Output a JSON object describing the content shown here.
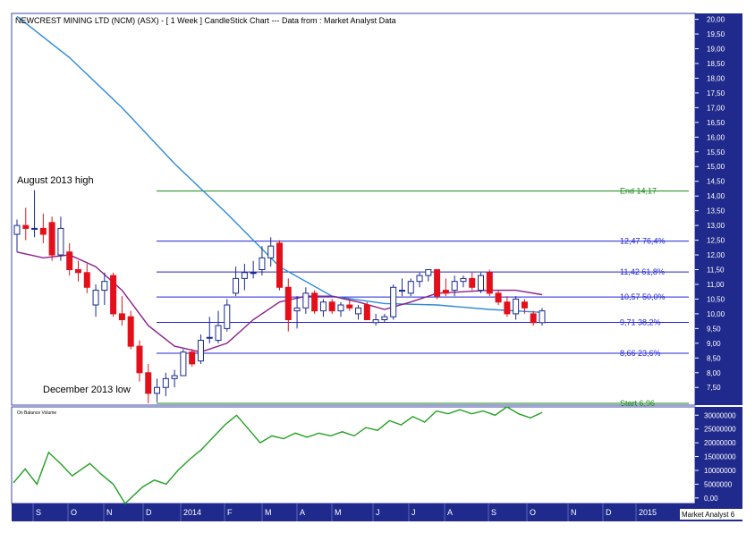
{
  "title": "NEWCREST MINING LTD (NCM) (ASX) -  [ 1 Week ] CandleStick Chart --- Data from : Market Analyst Data",
  "watermark": "Market Analyst 6",
  "annotations": {
    "high": "August 2013 high",
    "low": "December 2013 low"
  },
  "indicator_label": "On Balance Volume",
  "colors": {
    "axis_bg": "#1f2a8c",
    "up": "#ffffff",
    "down": "#e3101b",
    "fib_line": "#2323d8",
    "fib_end": "#1a8a1a",
    "ma_long": "#2e8ad8",
    "ma_short": "#8b1f8b",
    "obv": "#22a022"
  },
  "chart_data": [
    {
      "type": "candlestick",
      "x_axis_labels": [
        "S",
        "O",
        "N",
        "D",
        "2014",
        "F",
        "M",
        "A",
        "M",
        "J",
        "J",
        "A",
        "S",
        "O",
        "N",
        "D",
        "2015"
      ],
      "y_ticks": [
        "20,00",
        "19,50",
        "19,00",
        "18,50",
        "18,00",
        "17,50",
        "17,00",
        "16,50",
        "16,00",
        "15,50",
        "15,00",
        "14,50",
        "14,00",
        "13,50",
        "13,00",
        "12,50",
        "12,00",
        "11,50",
        "11,00",
        "10,50",
        "10,00",
        "9,50",
        "9,00",
        "8,50",
        "8,00",
        "7,50"
      ],
      "ylim": [
        6.9,
        20.2
      ],
      "fib_levels": [
        {
          "label": "End 14,17",
          "value": 14.17
        },
        {
          "label": "12,47 76,4%",
          "value": 12.47
        },
        {
          "label": "11,42 61,8%",
          "value": 11.42
        },
        {
          "label": "10,57 50,0%",
          "value": 10.57
        },
        {
          "label": "9,71 38,2%",
          "value": 9.71
        },
        {
          "label": "8,66 23,6%",
          "value": 8.66
        },
        {
          "label": "Start 6,96",
          "value": 6.96
        }
      ],
      "candles": [
        {
          "o": 12.7,
          "h": 13.2,
          "l": 12.1,
          "c": 13.0
        },
        {
          "o": 13.0,
          "h": 13.6,
          "l": 12.5,
          "c": 12.9
        },
        {
          "o": 12.9,
          "h": 14.2,
          "l": 12.6,
          "c": 12.9
        },
        {
          "o": 12.9,
          "h": 13.4,
          "l": 12.4,
          "c": 12.7
        },
        {
          "o": 13.1,
          "h": 13.3,
          "l": 11.8,
          "c": 12.0
        },
        {
          "o": 12.0,
          "h": 13.3,
          "l": 11.8,
          "c": 12.9
        },
        {
          "o": 12.1,
          "h": 12.4,
          "l": 11.3,
          "c": 11.5
        },
        {
          "o": 11.5,
          "h": 11.8,
          "l": 11.1,
          "c": 11.4
        },
        {
          "o": 11.4,
          "h": 11.7,
          "l": 10.7,
          "c": 10.9
        },
        {
          "o": 10.3,
          "h": 11.0,
          "l": 9.9,
          "c": 10.8
        },
        {
          "o": 10.8,
          "h": 11.4,
          "l": 10.3,
          "c": 11.1
        },
        {
          "o": 11.3,
          "h": 11.4,
          "l": 9.9,
          "c": 10.0
        },
        {
          "o": 10.0,
          "h": 10.6,
          "l": 9.6,
          "c": 9.8
        },
        {
          "o": 9.9,
          "h": 10.1,
          "l": 8.8,
          "c": 8.9
        },
        {
          "o": 8.9,
          "h": 9.1,
          "l": 7.7,
          "c": 8.0
        },
        {
          "o": 8.0,
          "h": 8.3,
          "l": 6.96,
          "c": 7.3
        },
        {
          "o": 7.3,
          "h": 7.8,
          "l": 7.0,
          "c": 7.5
        },
        {
          "o": 7.5,
          "h": 8.0,
          "l": 7.2,
          "c": 7.8
        },
        {
          "o": 7.8,
          "h": 8.1,
          "l": 7.5,
          "c": 7.9
        },
        {
          "o": 7.9,
          "h": 8.8,
          "l": 7.9,
          "c": 8.7
        },
        {
          "o": 8.7,
          "h": 8.8,
          "l": 8.2,
          "c": 8.3
        },
        {
          "o": 8.4,
          "h": 9.3,
          "l": 8.3,
          "c": 9.1
        },
        {
          "o": 9.2,
          "h": 9.9,
          "l": 9.0,
          "c": 9.2
        },
        {
          "o": 9.1,
          "h": 10.1,
          "l": 9.0,
          "c": 9.6
        },
        {
          "o": 9.5,
          "h": 10.5,
          "l": 9.4,
          "c": 10.3
        },
        {
          "o": 10.7,
          "h": 11.6,
          "l": 10.6,
          "c": 11.2
        },
        {
          "o": 11.2,
          "h": 11.7,
          "l": 10.8,
          "c": 11.4
        },
        {
          "o": 11.4,
          "h": 11.8,
          "l": 11.2,
          "c": 11.4
        },
        {
          "o": 11.5,
          "h": 12.3,
          "l": 11.3,
          "c": 11.9
        },
        {
          "o": 11.9,
          "h": 12.6,
          "l": 11.6,
          "c": 12.3
        },
        {
          "o": 12.4,
          "h": 12.5,
          "l": 10.8,
          "c": 10.9
        },
        {
          "o": 10.9,
          "h": 11.2,
          "l": 9.4,
          "c": 9.8
        },
        {
          "o": 10.1,
          "h": 10.6,
          "l": 9.5,
          "c": 10.2
        },
        {
          "o": 10.2,
          "h": 10.9,
          "l": 10.0,
          "c": 10.7
        },
        {
          "o": 10.7,
          "h": 10.8,
          "l": 10.0,
          "c": 10.1
        },
        {
          "o": 10.1,
          "h": 10.5,
          "l": 9.9,
          "c": 10.4
        },
        {
          "o": 10.4,
          "h": 10.5,
          "l": 10.0,
          "c": 10.1
        },
        {
          "o": 10.1,
          "h": 10.4,
          "l": 9.9,
          "c": 10.3
        },
        {
          "o": 10.3,
          "h": 10.5,
          "l": 10.1,
          "c": 10.2
        },
        {
          "o": 10.0,
          "h": 10.3,
          "l": 9.8,
          "c": 10.2
        },
        {
          "o": 10.3,
          "h": 10.4,
          "l": 9.8,
          "c": 9.8
        },
        {
          "o": 9.7,
          "h": 10.0,
          "l": 9.6,
          "c": 9.8
        },
        {
          "o": 9.8,
          "h": 10.0,
          "l": 9.7,
          "c": 9.9
        },
        {
          "o": 9.9,
          "h": 11.0,
          "l": 9.8,
          "c": 10.9
        },
        {
          "o": 10.8,
          "h": 11.2,
          "l": 10.6,
          "c": 10.8
        },
        {
          "o": 10.7,
          "h": 11.2,
          "l": 10.6,
          "c": 11.1
        },
        {
          "o": 11.1,
          "h": 11.4,
          "l": 10.9,
          "c": 11.3
        },
        {
          "o": 11.3,
          "h": 11.5,
          "l": 11.1,
          "c": 11.5
        },
        {
          "o": 11.5,
          "h": 11.5,
          "l": 10.5,
          "c": 10.6
        },
        {
          "o": 10.8,
          "h": 11.2,
          "l": 10.6,
          "c": 10.7
        },
        {
          "o": 10.8,
          "h": 11.3,
          "l": 10.6,
          "c": 11.1
        },
        {
          "o": 11.1,
          "h": 11.3,
          "l": 10.9,
          "c": 11.2
        },
        {
          "o": 11.2,
          "h": 11.4,
          "l": 10.8,
          "c": 10.9
        },
        {
          "o": 10.8,
          "h": 11.4,
          "l": 10.7,
          "c": 11.3
        },
        {
          "o": 11.4,
          "h": 11.5,
          "l": 10.6,
          "c": 10.7
        },
        {
          "o": 10.7,
          "h": 10.8,
          "l": 10.3,
          "c": 10.4
        },
        {
          "o": 10.4,
          "h": 10.6,
          "l": 9.9,
          "c": 10.0
        },
        {
          "o": 10.0,
          "h": 10.6,
          "l": 9.8,
          "c": 10.5
        },
        {
          "o": 10.4,
          "h": 10.5,
          "l": 10.0,
          "c": 10.2
        },
        {
          "o": 10.0,
          "h": 10.1,
          "l": 9.6,
          "c": 9.7
        },
        {
          "o": 9.7,
          "h": 10.2,
          "l": 9.6,
          "c": 10.1
        }
      ],
      "ma_long": [
        {
          "i": 0,
          "v": 20.1
        },
        {
          "i": 6,
          "v": 18.7
        },
        {
          "i": 12,
          "v": 17.0
        },
        {
          "i": 18,
          "v": 15.1
        },
        {
          "i": 24,
          "v": 13.4
        },
        {
          "i": 30,
          "v": 11.6
        },
        {
          "i": 36,
          "v": 10.6
        },
        {
          "i": 42,
          "v": 10.35
        },
        {
          "i": 48,
          "v": 10.3
        },
        {
          "i": 54,
          "v": 10.15
        },
        {
          "i": 60,
          "v": 10.05
        }
      ],
      "ma_short": [
        {
          "i": 0,
          "v": 12.1
        },
        {
          "i": 3,
          "v": 11.9
        },
        {
          "i": 6,
          "v": 12.0
        },
        {
          "i": 9,
          "v": 11.6
        },
        {
          "i": 12,
          "v": 10.8
        },
        {
          "i": 15,
          "v": 9.6
        },
        {
          "i": 18,
          "v": 8.9
        },
        {
          "i": 21,
          "v": 8.7
        },
        {
          "i": 24,
          "v": 9.0
        },
        {
          "i": 27,
          "v": 9.8
        },
        {
          "i": 30,
          "v": 10.4
        },
        {
          "i": 33,
          "v": 10.6
        },
        {
          "i": 36,
          "v": 10.6
        },
        {
          "i": 39,
          "v": 10.4
        },
        {
          "i": 42,
          "v": 10.15
        },
        {
          "i": 45,
          "v": 10.4
        },
        {
          "i": 48,
          "v": 10.7
        },
        {
          "i": 51,
          "v": 10.75
        },
        {
          "i": 54,
          "v": 10.8
        },
        {
          "i": 57,
          "v": 10.8
        },
        {
          "i": 60,
          "v": 10.65
        }
      ]
    },
    {
      "type": "line",
      "title": "On Balance Volume",
      "y_ticks": [
        "30000000",
        "25000000",
        "20000000",
        "15000000",
        "10000000",
        "5000000",
        "0,00"
      ],
      "ylim": [
        -2000000,
        33000000
      ],
      "values": [
        {
          "i": 0,
          "v": 5500000
        },
        {
          "i": 2,
          "v": 10500000
        },
        {
          "i": 4,
          "v": 5000000
        },
        {
          "i": 6,
          "v": 16500000
        },
        {
          "i": 8,
          "v": 12500000
        },
        {
          "i": 10,
          "v": 8000000
        },
        {
          "i": 13,
          "v": 12500000
        },
        {
          "i": 15,
          "v": 8500000
        },
        {
          "i": 17,
          "v": 5000000
        },
        {
          "i": 19,
          "v": -2000000
        },
        {
          "i": 22,
          "v": 4000000
        },
        {
          "i": 24,
          "v": 6500000
        },
        {
          "i": 26,
          "v": 5000000
        },
        {
          "i": 28,
          "v": 10000000
        },
        {
          "i": 30,
          "v": 14000000
        },
        {
          "i": 32,
          "v": 17500000
        },
        {
          "i": 34,
          "v": 22000000
        },
        {
          "i": 36,
          "v": 26500000
        },
        {
          "i": 38,
          "v": 30000000
        },
        {
          "i": 40,
          "v": 25000000
        },
        {
          "i": 42,
          "v": 20000000
        },
        {
          "i": 44,
          "v": 22500000
        },
        {
          "i": 46,
          "v": 21500000
        },
        {
          "i": 48,
          "v": 23500000
        },
        {
          "i": 50,
          "v": 22000000
        },
        {
          "i": 52,
          "v": 23500000
        },
        {
          "i": 54,
          "v": 22500000
        },
        {
          "i": 56,
          "v": 24000000
        },
        {
          "i": 58,
          "v": 22500000
        },
        {
          "i": 60,
          "v": 25500000
        },
        {
          "i": 62,
          "v": 24500000
        },
        {
          "i": 64,
          "v": 28000000
        },
        {
          "i": 66,
          "v": 26500000
        },
        {
          "i": 68,
          "v": 29500000
        },
        {
          "i": 70,
          "v": 27500000
        },
        {
          "i": 72,
          "v": 31500000
        },
        {
          "i": 74,
          "v": 30500000
        },
        {
          "i": 76,
          "v": 32000000
        },
        {
          "i": 78,
          "v": 30500000
        },
        {
          "i": 80,
          "v": 31500000
        },
        {
          "i": 82,
          "v": 30000000
        },
        {
          "i": 84,
          "v": 33000000
        },
        {
          "i": 86,
          "v": 30500000
        },
        {
          "i": 88,
          "v": 29000000
        },
        {
          "i": 90,
          "v": 31000000
        }
      ]
    }
  ]
}
